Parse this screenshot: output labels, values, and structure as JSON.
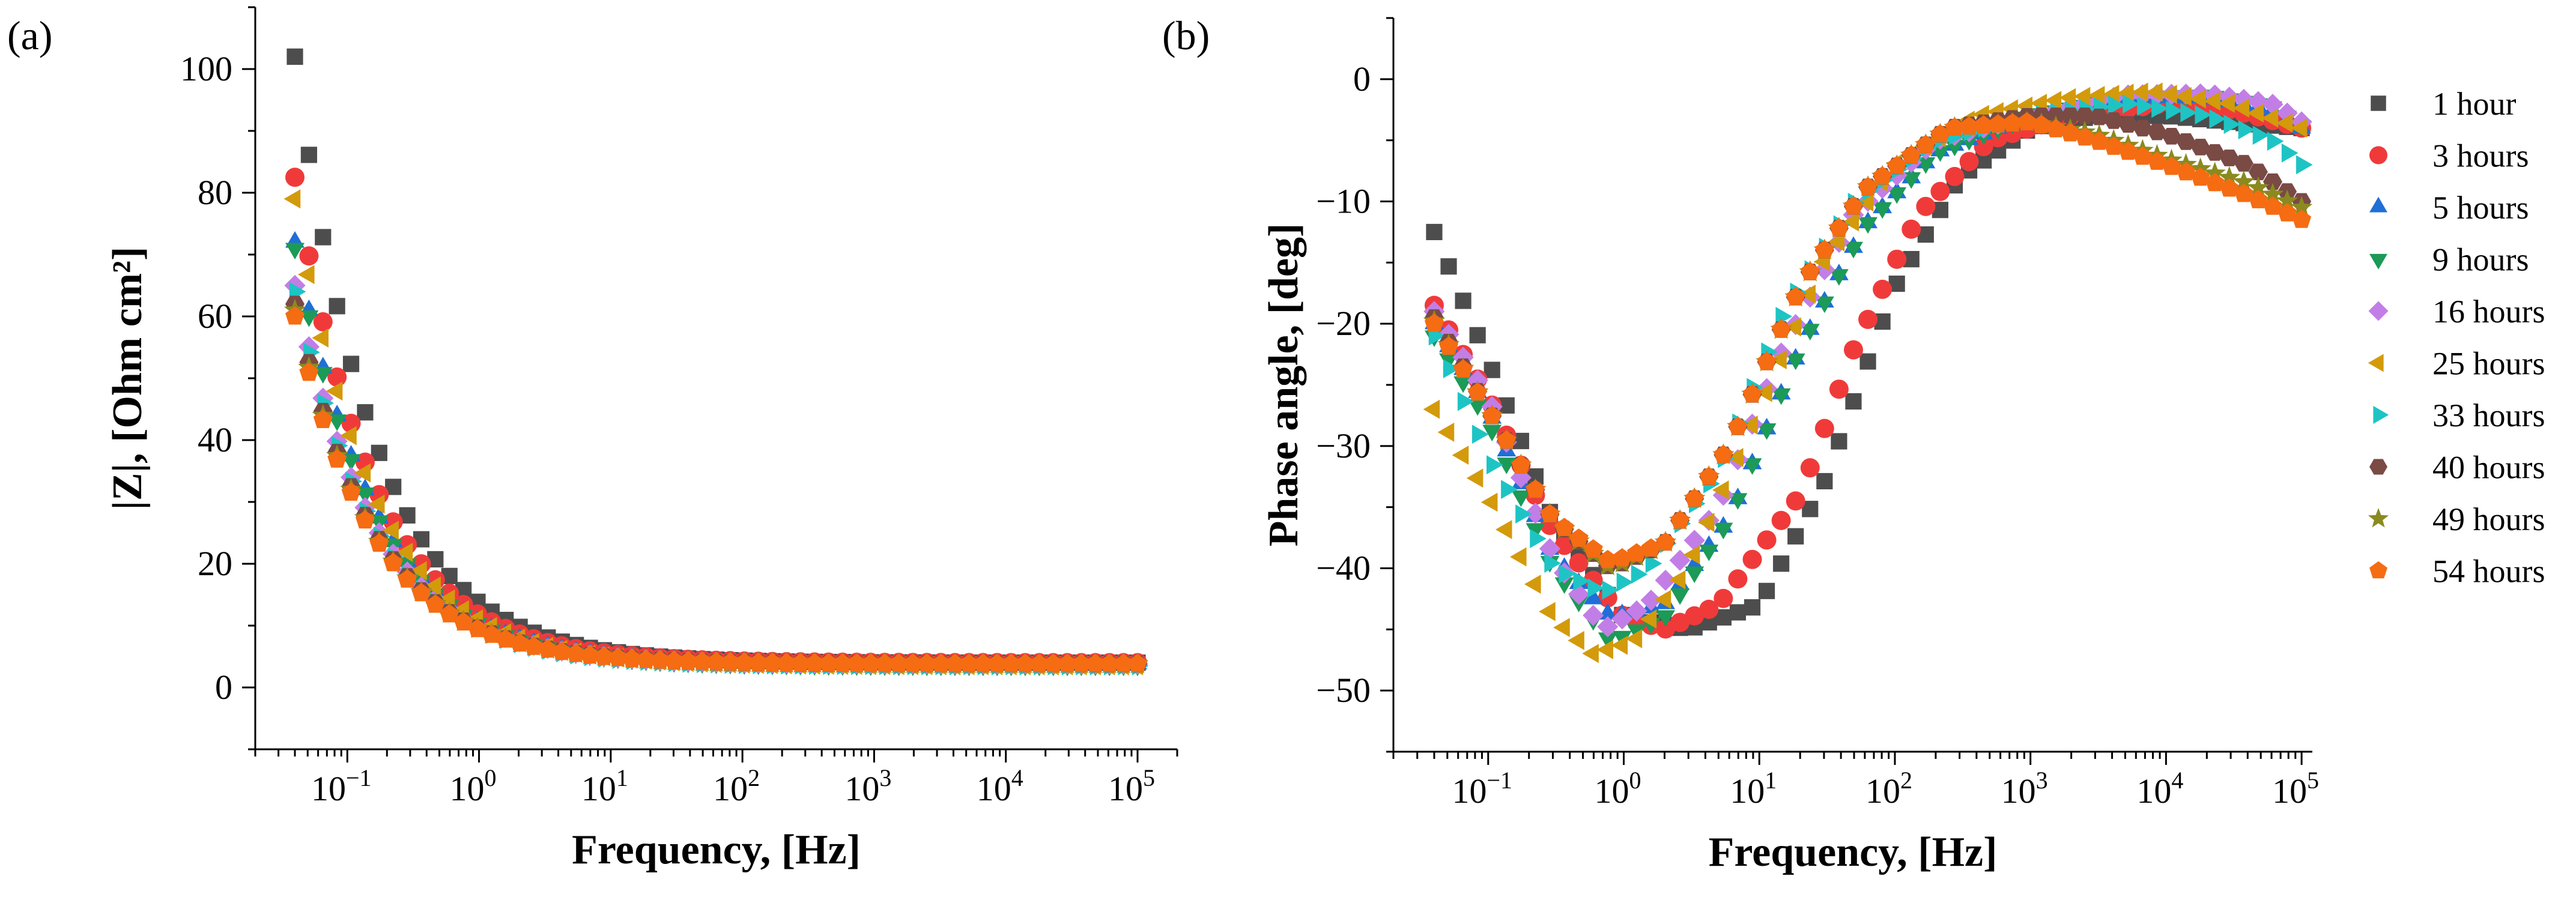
{
  "panels": {
    "a": {
      "label": "(a)"
    },
    "b": {
      "label": "(b)"
    }
  },
  "series_styles": [
    {
      "name": "1 hour",
      "color": "#4d4d4d",
      "marker": "square"
    },
    {
      "name": "3 hours",
      "color": "#f03a3a",
      "marker": "circle"
    },
    {
      "name": "5 hours",
      "color": "#1f6fd6",
      "marker": "triangle-up"
    },
    {
      "name": "9 hours",
      "color": "#1c9a57",
      "marker": "triangle-down"
    },
    {
      "name": "16 hours",
      "color": "#c27ee6",
      "marker": "diamond"
    },
    {
      "name": "25 hours",
      "color": "#d39a0b",
      "marker": "triangle-left"
    },
    {
      "name": "33 hours",
      "color": "#1ec4c4",
      "marker": "triangle-right"
    },
    {
      "name": "40 hours",
      "color": "#7a4a45",
      "marker": "hexagon"
    },
    {
      "name": "49 hours",
      "color": "#8a8a1e",
      "marker": "star"
    },
    {
      "name": "54 hours",
      "color": "#f56c12",
      "marker": "pentagon"
    }
  ],
  "chart_data": [
    {
      "type": "scatter",
      "panel": "(a)",
      "xlabel": "Frequency, [Hz]",
      "ylabel": "|Z|, [Ohm cm²]",
      "xscale": "log",
      "xlim": [
        0.02,
        200000
      ],
      "ylim": [
        -10,
        110
      ],
      "xticks": [
        {
          "base": "10",
          "exp": "−1",
          "value": 0.1
        },
        {
          "base": "10",
          "exp": "0",
          "value": 1
        },
        {
          "base": "10",
          "exp": "1",
          "value": 10
        },
        {
          "base": "10",
          "exp": "2",
          "value": 100
        },
        {
          "base": "10",
          "exp": "3",
          "value": 1000
        },
        {
          "base": "10",
          "exp": "4",
          "value": 10000
        },
        {
          "base": "10",
          "exp": "5",
          "value": 100000
        }
      ],
      "yticks": [
        {
          "label": "0",
          "value": 0
        },
        {
          "label": "20",
          "value": 20
        },
        {
          "label": "40",
          "value": 40
        },
        {
          "label": "60",
          "value": 60
        },
        {
          "label": "80",
          "value": 80
        },
        {
          "label": "100",
          "value": 100
        }
      ],
      "legend": "none",
      "series": [
        {
          "name": "1 hour",
          "low_f_value": 102,
          "r_high": 4.0,
          "decay_decades": 0.55,
          "note_values_generated_by_script": false
        },
        {
          "name": "3 hours",
          "low_f_value": 82.5,
          "r_high": 4.0,
          "decay_decades": 0.55
        },
        {
          "name": "5 hours",
          "low_f_value": 72,
          "r_high": 3.8,
          "decay_decades": 0.55
        },
        {
          "name": "9 hours",
          "low_f_value": 71,
          "r_high": 3.6,
          "decay_decades": 0.55
        },
        {
          "name": "16 hours",
          "low_f_value": 65,
          "r_high": 3.8,
          "decay_decades": 0.55
        },
        {
          "name": "25 hours",
          "low_f_value": 79,
          "r_high": 3.5,
          "decay_decades": 0.55
        },
        {
          "name": "33 hours",
          "low_f_value": 64,
          "r_high": 3.5,
          "decay_decades": 0.55
        },
        {
          "name": "40 hours",
          "low_f_value": 62,
          "r_high": 3.8,
          "decay_decades": 0.55
        },
        {
          "name": "49 hours",
          "low_f_value": 61,
          "r_high": 3.8,
          "decay_decades": 0.55
        },
        {
          "name": "54 hours",
          "low_f_value": 60,
          "r_high": 3.8,
          "decay_decades": 0.55
        }
      ]
    },
    {
      "type": "scatter",
      "panel": "(b)",
      "xlabel": "Frequency, [Hz]",
      "ylabel": "Phase angle, [deg]",
      "xscale": "log",
      "xlim": [
        0.02,
        120000
      ],
      "ylim": [
        -55,
        5
      ],
      "xticks": [
        {
          "base": "10",
          "exp": "−1",
          "value": 0.1
        },
        {
          "base": "10",
          "exp": "0",
          "value": 1
        },
        {
          "base": "10",
          "exp": "1",
          "value": 10
        },
        {
          "base": "10",
          "exp": "2",
          "value": 100
        },
        {
          "base": "10",
          "exp": "3",
          "value": 1000
        },
        {
          "base": "10",
          "exp": "4",
          "value": 10000
        },
        {
          "base": "10",
          "exp": "5",
          "value": 100000
        }
      ],
      "yticks": [
        {
          "label": "−50",
          "value": -50
        },
        {
          "label": "−40",
          "value": -40
        },
        {
          "label": "−30",
          "value": -30
        },
        {
          "label": "−20",
          "value": -20
        },
        {
          "label": "−10",
          "value": -10
        },
        {
          "label": "0",
          "value": 0
        }
      ],
      "legend": "right",
      "series": [
        {
          "name": "1 hour",
          "points": [
            [
              0.04,
              -12.5
            ],
            [
              0.1,
              -23
            ],
            [
              0.3,
              -36
            ],
            [
              1,
              -44
            ],
            [
              3,
              -45
            ],
            [
              10,
              -43
            ],
            [
              30,
              -33
            ],
            [
              100,
              -17
            ],
            [
              300,
              -8
            ],
            [
              1000,
              -4
            ],
            [
              3000,
              -3
            ],
            [
              10000,
              -3
            ],
            [
              30000,
              -3.5
            ],
            [
              100000,
              -4
            ]
          ]
        },
        {
          "name": "3 hours",
          "points": [
            [
              0.04,
              -18.5
            ],
            [
              0.1,
              -26
            ],
            [
              0.3,
              -37
            ],
            [
              1,
              -44
            ],
            [
              2,
              -45
            ],
            [
              5,
              -43
            ],
            [
              20,
              -34
            ],
            [
              50,
              -22
            ],
            [
              150,
              -11
            ],
            [
              500,
              -5
            ],
            [
              2000,
              -3
            ],
            [
              10000,
              -2
            ],
            [
              30000,
              -2.5
            ],
            [
              100000,
              -4
            ]
          ]
        },
        {
          "name": "5 hours",
          "points": [
            [
              0.04,
              -20
            ],
            [
              0.1,
              -27
            ],
            [
              0.3,
              -39
            ],
            [
              0.8,
              -44
            ],
            [
              2,
              -43
            ],
            [
              6,
              -36
            ],
            [
              20,
              -22
            ],
            [
              60,
              -12
            ],
            [
              200,
              -6
            ],
            [
              1000,
              -3
            ],
            [
              5000,
              -1.5
            ],
            [
              20000,
              -1.5
            ],
            [
              60000,
              -2.5
            ],
            [
              100000,
              -4
            ]
          ]
        },
        {
          "name": "9 hours",
          "points": [
            [
              0.04,
              -21
            ],
            [
              0.1,
              -28
            ],
            [
              0.3,
              -40
            ],
            [
              0.8,
              -46
            ],
            [
              2,
              -44
            ],
            [
              6,
              -36
            ],
            [
              20,
              -22
            ],
            [
              60,
              -12
            ],
            [
              200,
              -6
            ],
            [
              1000,
              -3
            ],
            [
              5000,
              -1.5
            ],
            [
              20000,
              -1.3
            ],
            [
              60000,
              -2.2
            ],
            [
              100000,
              -3.8
            ]
          ]
        },
        {
          "name": "16 hours",
          "points": [
            [
              0.04,
              -19
            ],
            [
              0.1,
              -26
            ],
            [
              0.3,
              -39
            ],
            [
              0.7,
              -45
            ],
            [
              1.5,
              -43
            ],
            [
              5,
              -35
            ],
            [
              15,
              -22
            ],
            [
              50,
              -11
            ],
            [
              200,
              -5
            ],
            [
              1000,
              -3
            ],
            [
              5000,
              -1.3
            ],
            [
              20000,
              -1.2
            ],
            [
              60000,
              -2
            ],
            [
              100000,
              -3.5
            ]
          ]
        },
        {
          "name": "25 hours",
          "points": [
            [
              0.04,
              -27
            ],
            [
              0.1,
              -34
            ],
            [
              0.3,
              -44
            ],
            [
              0.6,
              -47
            ],
            [
              1.2,
              -46
            ],
            [
              3,
              -40
            ],
            [
              10,
              -27
            ],
            [
              30,
              -15
            ],
            [
              100,
              -7
            ],
            [
              400,
              -3
            ],
            [
              2000,
              -1.5
            ],
            [
              8000,
              -1
            ],
            [
              30000,
              -2
            ],
            [
              100000,
              -4
            ]
          ]
        },
        {
          "name": "33 hours",
          "points": [
            [
              0.04,
              -21
            ],
            [
              0.1,
              -31
            ],
            [
              0.3,
              -40
            ],
            [
              0.7,
              -42
            ],
            [
              1.5,
              -40
            ],
            [
              5,
              -32
            ],
            [
              15,
              -19
            ],
            [
              50,
              -10
            ],
            [
              200,
              -5
            ],
            [
              1000,
              -3
            ],
            [
              5000,
              -2
            ],
            [
              20000,
              -3
            ],
            [
              60000,
              -5
            ],
            [
              100000,
              -7
            ]
          ]
        },
        {
          "name": "40 hours",
          "points": [
            [
              0.04,
              -19.5
            ],
            [
              0.1,
              -27
            ],
            [
              0.3,
              -36
            ],
            [
              0.8,
              -40
            ],
            [
              2,
              -38
            ],
            [
              6,
              -30
            ],
            [
              20,
              -17
            ],
            [
              60,
              -9
            ],
            [
              250,
              -4
            ],
            [
              1000,
              -3
            ],
            [
              3000,
              -3
            ],
            [
              10000,
              -4.5
            ],
            [
              40000,
              -7
            ],
            [
              100000,
              -10
            ]
          ]
        },
        {
          "name": "49 hours",
          "points": [
            [
              0.04,
              -19.8
            ],
            [
              0.1,
              -27
            ],
            [
              0.3,
              -36
            ],
            [
              0.8,
              -40
            ],
            [
              2,
              -38
            ],
            [
              6,
              -30
            ],
            [
              20,
              -17
            ],
            [
              60,
              -9
            ],
            [
              250,
              -4
            ],
            [
              1000,
              -3.5
            ],
            [
              3000,
              -4.5
            ],
            [
              10000,
              -6.5
            ],
            [
              40000,
              -8.5
            ],
            [
              100000,
              -10.5
            ]
          ]
        },
        {
          "name": "54 hours",
          "points": [
            [
              0.04,
              -20
            ],
            [
              0.1,
              -27
            ],
            [
              0.3,
              -36
            ],
            [
              0.8,
              -39.5
            ],
            [
              2,
              -38
            ],
            [
              6,
              -30
            ],
            [
              20,
              -17
            ],
            [
              60,
              -9
            ],
            [
              250,
              -4
            ],
            [
              1000,
              -3.5
            ],
            [
              3000,
              -5
            ],
            [
              10000,
              -7
            ],
            [
              40000,
              -9.5
            ],
            [
              100000,
              -11.5
            ]
          ]
        }
      ]
    }
  ]
}
